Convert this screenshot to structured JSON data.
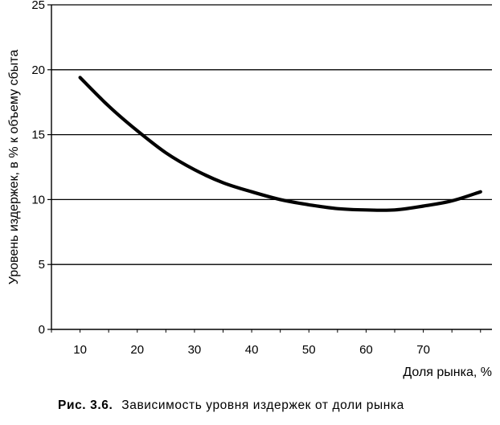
{
  "chart_data": {
    "type": "line",
    "title": "",
    "xlabel": "Доля рынка, %",
    "ylabel": "Уровень издержек, в % к объему сбыта",
    "xlim": [
      5,
      82
    ],
    "ylim": [
      0,
      25
    ],
    "xticks": [
      10,
      20,
      30,
      40,
      50,
      60,
      70
    ],
    "yticks": [
      0,
      5,
      10,
      15,
      20,
      25
    ],
    "grid": "horizontal",
    "legend": "none",
    "series": [
      {
        "color": "#000000",
        "x": [
          10,
          15,
          20,
          25,
          30,
          35,
          40,
          45,
          50,
          55,
          60,
          65,
          70,
          75,
          80
        ],
        "y": [
          19.4,
          17.2,
          15.3,
          13.6,
          12.3,
          11.3,
          10.6,
          10.0,
          9.6,
          9.3,
          9.2,
          9.2,
          9.5,
          9.9,
          10.6
        ]
      }
    ]
  },
  "caption": {
    "number": "Рис. 3.6.",
    "text": "Зависимость уровня издержек от доли рынка"
  }
}
